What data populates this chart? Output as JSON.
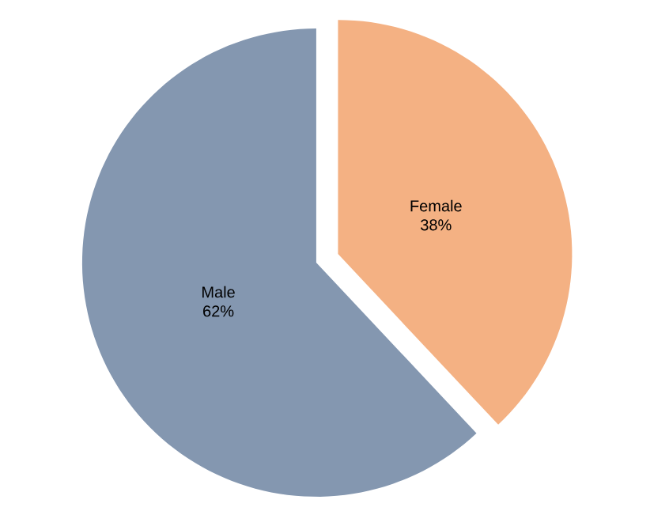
{
  "chart_data": {
    "type": "pie",
    "categories": [
      "Female",
      "Male"
    ],
    "values": [
      38,
      62
    ],
    "colors": [
      "#f4b183",
      "#8497b0"
    ],
    "value_labels": [
      "38%",
      "62%"
    ]
  }
}
